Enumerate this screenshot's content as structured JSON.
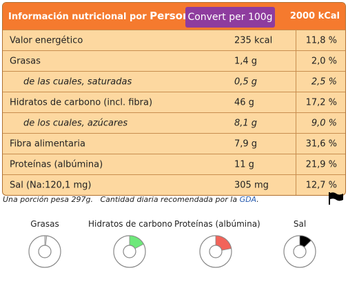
{
  "header": {
    "title_prefix": "Información nutricional por",
    "title_unit": "Person",
    "convert_button": "Convert per 100g",
    "reference_kcal": "2000 kCal"
  },
  "rows": [
    {
      "label": "Valor energético",
      "value": "235 kcal",
      "percent": "11,8 %",
      "sub": false
    },
    {
      "label": "Grasas",
      "value": "1,4 g",
      "percent": "2,0 %",
      "sub": false
    },
    {
      "label": "de las cuales, saturadas",
      "value": "0,5 g",
      "percent": "2,5 %",
      "sub": true
    },
    {
      "label": "Hidratos de carbono (incl. fibra)",
      "value": "46 g",
      "percent": "17,2 %",
      "sub": false
    },
    {
      "label": "de los cuales, azúcares",
      "value": "8,1 g",
      "percent": "9,0 %",
      "sub": true
    },
    {
      "label": "Fibra alimentaria",
      "value": "7,9 g",
      "percent": "31,6 %",
      "sub": false
    },
    {
      "label": "Proteínas (albúmina)",
      "value": "11 g",
      "percent": "21,9 %",
      "sub": false
    },
    {
      "label": "Sal (Na:120,1 mg)",
      "value": "305 mg",
      "percent": "12,7 %",
      "sub": false
    }
  ],
  "footnote": {
    "portion": "Una porción pesa 297g.",
    "gda_text": "Cantidad diaria recomendada por la",
    "gda_link": "GDA",
    "gda_end": "."
  },
  "flag_icon": "black-flag-icon",
  "gauges": [
    {
      "label": "Grasas",
      "fraction": 0.02,
      "color": "#cccccc"
    },
    {
      "label": "Hidratos de carbono",
      "fraction": 0.172,
      "color": "#6ee87a"
    },
    {
      "label": "Proteínas (albúmina)",
      "fraction": 0.219,
      "color": "#f2645a"
    },
    {
      "label": "Sal",
      "fraction": 0.127,
      "color": "#000000"
    }
  ]
}
